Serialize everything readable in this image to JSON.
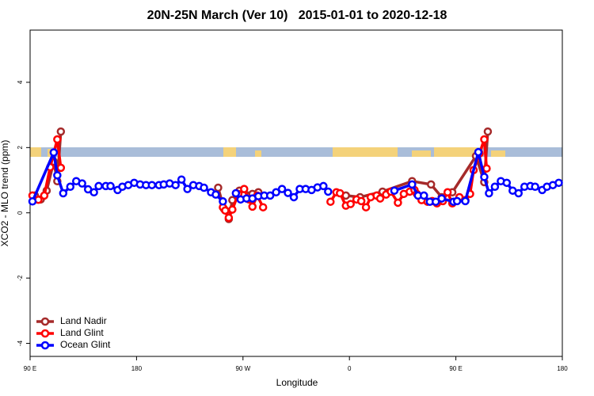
{
  "chart_data": {
    "type": "line",
    "title": "20N-25N March (Ver 10)   2015-01-01 to 2020-12-18",
    "x_label": "Longitude",
    "y_label": "XCO2 - MLO trend (ppm)",
    "xlim": [
      90,
      540
    ],
    "ylim": [
      -4.4,
      5.6
    ],
    "xticks": [
      {
        "value": 90,
        "label": "90 E"
      },
      180,
      {
        "value": 270,
        "label": "90 W"
      },
      {
        "value": 360,
        "label": "0"
      },
      {
        "value": 450,
        "label": "90 E"
      },
      {
        "value": 540,
        "label": "180"
      }
    ],
    "yticks": [
      -4,
      -2,
      0,
      2,
      4
    ],
    "legend_position": "bottom-left",
    "series": [
      {
        "name": "Land Nadir",
        "color": "#a52a2a",
        "x": [
          94,
          99,
          104,
          110,
          113,
          116,
          null,
          249,
          254,
          258,
          261,
          267,
          278,
          283,
          null,
          357,
          369,
          388,
          413,
          429,
          438,
          447,
          467,
          474,
          477
        ],
        "values": [
          0.53,
          0.41,
          0.68,
          1.57,
          0.97,
          2.49,
          null,
          0.77,
          0.12,
          -0.19,
          0.39,
          0.68,
          0.58,
          0.63,
          null,
          0.53,
          0.48,
          0.65,
          0.97,
          0.87,
          0.48,
          0.63,
          1.74,
          0.94,
          2.49
        ]
      },
      {
        "name": "Land Glint",
        "color": "#ff0000",
        "x": [
          92,
          97,
          102,
          107,
          113,
          116,
          null,
          253,
          255,
          258,
          261,
          266,
          271,
          275,
          278,
          282,
          287,
          null,
          344,
          349,
          352,
          357,
          361,
          366,
          370,
          374,
          378,
          383,
          386,
          391,
          395,
          401,
          406,
          411,
          415,
          417,
          421,
          426,
          430,
          434,
          439,
          443,
          447,
          453,
          458,
          462,
          465,
          470,
          474,
          476
        ],
        "values": [
          0.53,
          0.4,
          0.53,
          1.4,
          2.25,
          1.38,
          null,
          0.17,
          0.07,
          -0.15,
          0.1,
          0.58,
          0.73,
          0.41,
          0.19,
          0.53,
          0.17,
          null,
          0.34,
          0.63,
          0.6,
          0.22,
          0.27,
          0.41,
          0.36,
          0.17,
          0.48,
          0.53,
          0.44,
          0.56,
          0.65,
          0.31,
          0.58,
          0.65,
          0.7,
          0.58,
          0.39,
          0.34,
          0.36,
          0.29,
          0.36,
          0.63,
          0.29,
          0.48,
          0.39,
          0.58,
          1.31,
          1.82,
          2.25,
          1.36
        ]
      },
      {
        "name": "Ocean Glint",
        "color": "#0000ff",
        "x": [
          92,
          110,
          113,
          118,
          124,
          129,
          134,
          139,
          144,
          148,
          154,
          158,
          164,
          168,
          173,
          178,
          183,
          188,
          193,
          199,
          203,
          208,
          213,
          218,
          223,
          228,
          233,
          237,
          243,
          247,
          253,
          null,
          264,
          268,
          273,
          278,
          283,
          288,
          293,
          298,
          303,
          308,
          313,
          318,
          323,
          328,
          333,
          338,
          342,
          null,
          398,
          413,
          418,
          423,
          428,
          433,
          438,
          448,
          451,
          458,
          469,
          474,
          478,
          483,
          488,
          493,
          498,
          503,
          508,
          513,
          517,
          523,
          527,
          532,
          537
        ],
        "values": [
          0.35,
          1.85,
          1.15,
          0.6,
          0.8,
          0.97,
          0.9,
          0.72,
          0.63,
          0.82,
          0.82,
          0.82,
          0.7,
          0.8,
          0.85,
          0.92,
          0.87,
          0.85,
          0.85,
          0.85,
          0.87,
          0.9,
          0.85,
          1.02,
          0.73,
          0.85,
          0.82,
          0.77,
          0.63,
          0.56,
          0.35,
          null,
          0.6,
          0.41,
          0.44,
          0.44,
          0.51,
          0.53,
          0.53,
          0.63,
          0.73,
          0.61,
          0.48,
          0.73,
          0.73,
          0.7,
          0.78,
          0.82,
          0.65,
          null,
          0.68,
          0.87,
          0.53,
          0.53,
          0.34,
          0.34,
          0.44,
          0.34,
          0.36,
          0.36,
          1.86,
          1.1,
          0.6,
          0.8,
          0.97,
          0.92,
          0.68,
          0.6,
          0.8,
          0.82,
          0.8,
          0.7,
          0.8,
          0.85,
          0.92
        ]
      }
    ]
  }
}
